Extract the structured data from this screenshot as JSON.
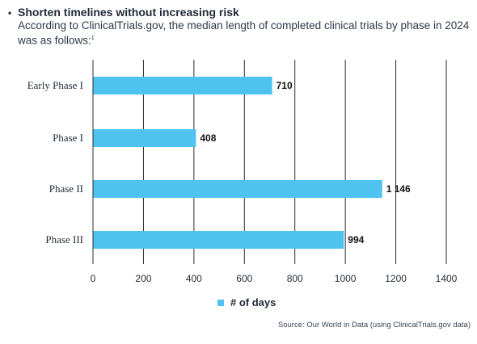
{
  "header": {
    "bullet": "•",
    "title": "Shorten timelines without increasing risk",
    "subtitle": "According to ClinicalTrials.gov, the median length of completed clinical trials by phase in 2024 was as follows:",
    "footnote_marker": "1"
  },
  "chart_data": {
    "type": "bar",
    "orientation": "horizontal",
    "categories": [
      "Early Phase I",
      "Phase I",
      "Phase II",
      "Phase III"
    ],
    "series": [
      {
        "name": "# of days",
        "values": [
          710,
          408,
          1146,
          994
        ],
        "value_labels": [
          "710",
          "408",
          "1 146",
          "994"
        ]
      }
    ],
    "xlim": [
      0,
      1400
    ],
    "xticks": [
      0,
      200,
      400,
      600,
      800,
      1000,
      1200,
      1400
    ],
    "grid": "vertical",
    "legend_position": "bottom",
    "color": "#4fc3f0"
  },
  "legend": {
    "label": "# of days"
  },
  "source": "Source: Our World in Data (using ClinicalTrials.gov data)"
}
